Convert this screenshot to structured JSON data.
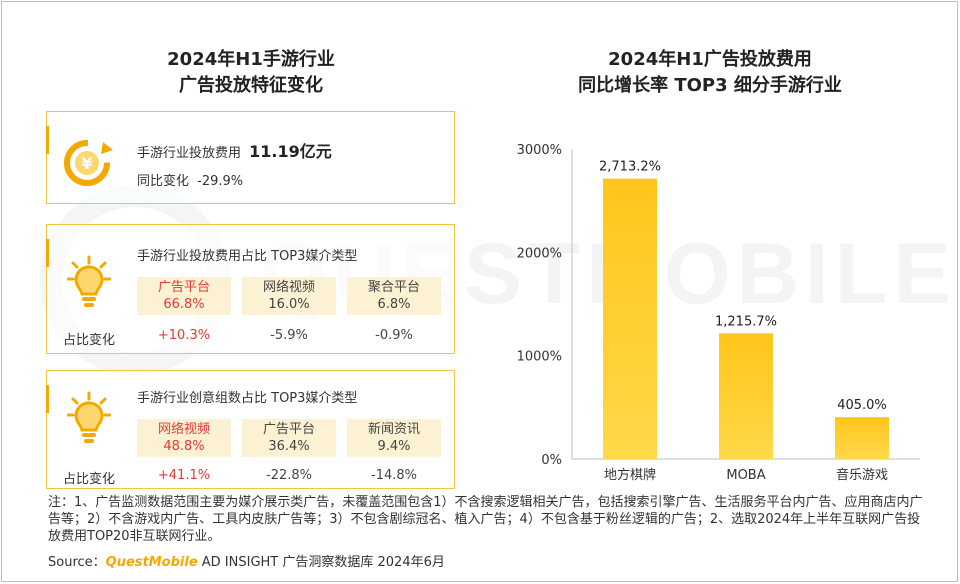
{
  "left_panel": {
    "title_line1": "2024年H1手游行业",
    "title_line2": "广告投放特征变化",
    "card1": {
      "label": "手游行业投放费用",
      "value": "11.19亿元",
      "change_label": "同比变化",
      "change_value": "-29.9%"
    },
    "card2": {
      "heading": "手游行业投放费用占比   TOP3媒介类型",
      "change_label": "占比变化",
      "chips": [
        {
          "name": "广告平台",
          "value": "66.8%",
          "change": "+10.3%"
        },
        {
          "name": "网络视频",
          "value": "16.0%",
          "change": "-5.9%"
        },
        {
          "name": "聚合平台",
          "value": "6.8%",
          "change": "-0.9%"
        }
      ]
    },
    "card3": {
      "heading": "手游行业创意组数占比   TOP3媒介类型",
      "change_label": "占比变化",
      "chips": [
        {
          "name": "网络视频",
          "value": "48.8%",
          "change": "+41.1%"
        },
        {
          "name": "广告平台",
          "value": "36.4%",
          "change": "-22.8%"
        },
        {
          "name": "新闻资讯",
          "value": "9.4%",
          "change": "-14.8%"
        }
      ]
    }
  },
  "right_panel": {
    "title_line1": "2024年H1广告投放费用",
    "title_line2": "同比增长率 TOP3 细分手游行业"
  },
  "chart_data": {
    "type": "bar",
    "categories": [
      "地方棋牌",
      "MOBA",
      "音乐游戏"
    ],
    "values": [
      2713.2,
      1215.7,
      405.0
    ],
    "value_labels": [
      "2,713.2%",
      "1,215.7%",
      "405.0%"
    ],
    "y_ticks": [
      "0%",
      "1000%",
      "2000%",
      "3000%"
    ],
    "ylim": [
      0,
      3000
    ],
    "bar_color_top": "#ffc61a",
    "bar_color_bottom": "#ffd84a"
  },
  "watermark": "QUESTMOBILE",
  "footnote": "注：1、广告监测数据范围主要为媒介展示类广告，未覆盖范围包含1）不含搜索逻辑相关广告，包括搜索引擎广告、生活服务平台内广告、应用商店内广告等；2）不含游戏内广告、工具内皮肤广告等；3）不包含剧综冠名、植入广告；4）不包含基于粉丝逻辑的广告；2、选取2024年上半年互联网广告投放费用TOP20非互联网行业。",
  "source": {
    "prefix": "Source：",
    "brand": "QuestMobile",
    "suffix": " AD INSIGHT 广告洞察数据库  2024年6月"
  },
  "colors": {
    "accent": "#f5a800",
    "chip_bg": "#fdf1d4",
    "highlight_red": "#e53935"
  }
}
